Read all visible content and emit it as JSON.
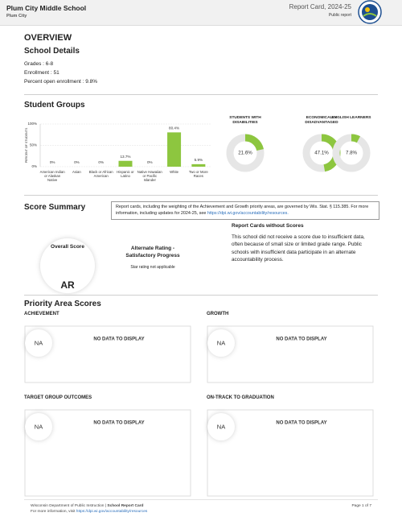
{
  "header": {
    "school": "Plum City Middle School",
    "district": "Plum City",
    "report": "Report Card, 2024-25",
    "audience": "Public report"
  },
  "overview": {
    "title": "OVERVIEW",
    "details_title": "School Details",
    "details": [
      "Grades : 6-8",
      "Enrollment : 51",
      "Percent open enrollment : 9.8%"
    ]
  },
  "chart_data": [
    {
      "type": "bar",
      "title": "Student Groups",
      "y_label": "PERCENT OF STUDENTS",
      "categories": [
        "American Indian or Alaskan Native",
        "Asian",
        "Black or African American",
        "Hispanic or Latino",
        "Native Hawaiian or Pacific Islander",
        "White",
        "Two or More Races"
      ],
      "values": [
        0,
        0,
        0,
        13.7,
        0,
        80.4,
        5.9
      ],
      "value_labels": [
        "0%",
        "0%",
        "0%",
        "13.7%",
        "0%",
        "80.4%",
        "5.9%"
      ],
      "color": "#8dc63f",
      "ylim": [
        0,
        100
      ],
      "yticks": [
        {
          "value": 0,
          "label": "0%"
        },
        {
          "value": 50,
          "label": "50%"
        },
        {
          "value": 100,
          "label": "100%"
        }
      ],
      "grid": true
    },
    {
      "type": "donut",
      "title": "STUDENTS WITH DISABILITIES",
      "values": [
        21.6
      ],
      "value_labels": [
        "21.6%"
      ],
      "color": "#8dc63f"
    },
    {
      "type": "donut",
      "title": "ECONOMICALLY DISADVANTAGED",
      "values": [
        47.1
      ],
      "value_labels": [
        "47.1%"
      ],
      "color": "#8dc63f"
    },
    {
      "type": "donut",
      "title": "ENGLISH LEARNERS",
      "values": [
        7.8
      ],
      "value_labels": [
        "7.8%"
      ],
      "color": "#8dc63f"
    }
  ],
  "score_summary": {
    "title": "Score Summary",
    "note": "Report cards, including the weighting of the Achievement and Growth priority areas, are governed by Wis. Stat. § 115.385. For more information, including updates for 2024-25, see ",
    "note_link": "https://dpi.wi.gov/accountability/resources.",
    "overall_label": "Overall Score",
    "overall": "AR",
    "rating": "Alternate Rating - Satisfactory Progress",
    "stars": "Star rating not applicable",
    "no_scores_title": "Report Cards without Scores",
    "no_scores_text": "This school did not receive a score due to insufficient data, often because of small size or limited grade range. Public schools with insufficient data participate in an alternate accountability process."
  },
  "priority": {
    "title": "Priority Area Scores",
    "areas": [
      {
        "name": "ACHIEVEMENT",
        "score": "NA",
        "message": "NO DATA TO DISPLAY"
      },
      {
        "name": "GROWTH",
        "score": "NA",
        "message": "NO DATA TO DISPLAY"
      },
      {
        "name": "TARGET GROUP OUTCOMES",
        "score": "NA",
        "message": "NO DATA TO DISPLAY"
      },
      {
        "name": "ON-TRACK TO GRADUATION",
        "score": "NA",
        "message": "NO DATA TO DISPLAY"
      }
    ]
  },
  "footer": {
    "org": "Wisconsin Department of Public Instruction |",
    "product": "School Report Card",
    "info": "For more information, visit",
    "link": "https://dpi.wi.gov/accountability/resources",
    "page": "Page 1 of 7"
  }
}
